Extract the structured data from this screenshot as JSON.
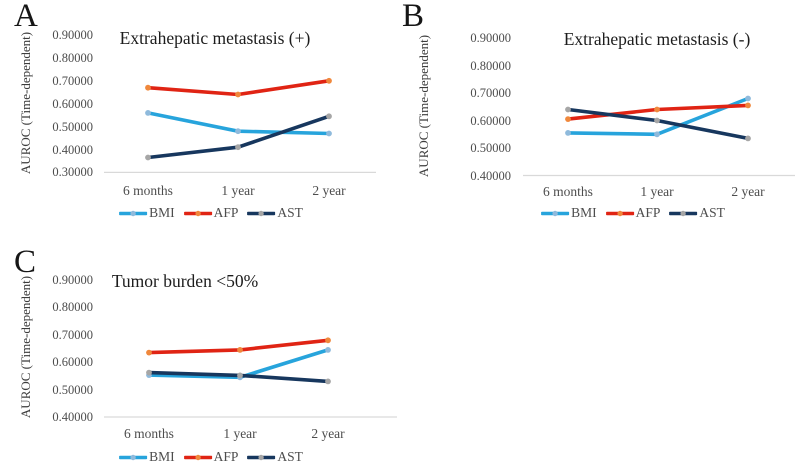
{
  "figure": {
    "background": "#FFFFFF",
    "axis_line_color": "#D9D9D9"
  },
  "chart_data": [
    {
      "type": "line",
      "panel_label": "A",
      "title": "Extrahepatic metastasis (+)",
      "xlabel": "",
      "ylabel": "AUROC (Time-dependent)",
      "categories": [
        "6 months",
        "1 year",
        "2 year"
      ],
      "ylim": [
        0.3,
        0.9
      ],
      "ytick_labels": [
        "0.90000",
        "0.80000",
        "0.70000",
        "0.60000",
        "0.50000",
        "0.40000",
        "0.30000"
      ],
      "grid": false,
      "legend_position": "bottom",
      "series": [
        {
          "name": "BMI",
          "values": [
            0.56,
            0.48,
            0.47
          ],
          "line_color": "#27A4DC",
          "marker_color": "#8FBADC"
        },
        {
          "name": "AFP",
          "values": [
            0.67,
            0.64,
            0.7
          ],
          "line_color": "#E02414",
          "marker_color": "#F0883C"
        },
        {
          "name": "AST",
          "values": [
            0.365,
            0.41,
            0.545
          ],
          "line_color": "#17375E",
          "marker_color": "#A6A6A6"
        }
      ]
    },
    {
      "type": "line",
      "panel_label": "B",
      "title": "Extrahepatic metastasis (-)",
      "xlabel": "",
      "ylabel": "AUROC (Time-dependent)",
      "categories": [
        "6 months",
        "1 year",
        "2 year"
      ],
      "ylim": [
        0.4,
        0.9
      ],
      "ytick_labels": [
        "0.90000",
        "0.80000",
        "0.70000",
        "0.60000",
        "0.50000",
        "0.40000"
      ],
      "grid": false,
      "legend_position": "bottom",
      "series": [
        {
          "name": "BMI",
          "values": [
            0.555,
            0.55,
            0.68
          ],
          "line_color": "#27A4DC",
          "marker_color": "#8FBADC"
        },
        {
          "name": "AFP",
          "values": [
            0.605,
            0.64,
            0.655
          ],
          "line_color": "#E02414",
          "marker_color": "#F0883C"
        },
        {
          "name": "AST",
          "values": [
            0.64,
            0.6,
            0.535
          ],
          "line_color": "#17375E",
          "marker_color": "#A6A6A6"
        }
      ]
    },
    {
      "type": "line",
      "panel_label": "C",
      "title": "Tumor burden <50%",
      "xlabel": "",
      "ylabel": "AUROC (Time-dependent)",
      "categories": [
        "6 months",
        "1 year",
        "2 year"
      ],
      "ylim": [
        0.4,
        0.9
      ],
      "ytick_labels": [
        "0.90000",
        "0.80000",
        "0.70000",
        "0.60000",
        "0.50000",
        "0.40000"
      ],
      "grid": false,
      "legend_position": "bottom",
      "series": [
        {
          "name": "BMI",
          "values": [
            0.553,
            0.545,
            0.645
          ],
          "line_color": "#27A4DC",
          "marker_color": "#8FBADC"
        },
        {
          "name": "AFP",
          "values": [
            0.635,
            0.645,
            0.68
          ],
          "line_color": "#E02414",
          "marker_color": "#F0883C"
        },
        {
          "name": "AST",
          "values": [
            0.562,
            0.552,
            0.53
          ],
          "line_color": "#17375E",
          "marker_color": "#A6A6A6"
        }
      ]
    }
  ]
}
